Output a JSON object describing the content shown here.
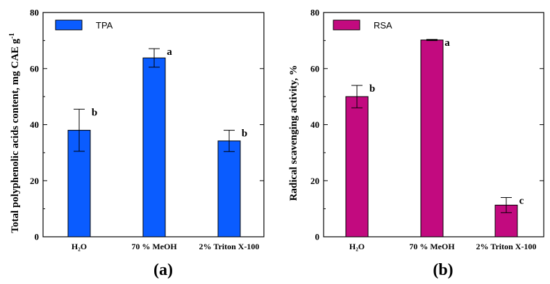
{
  "chart_data": [
    {
      "type": "bar",
      "panel_label": "(a)",
      "categories": [
        "H₂O",
        "70 % MeOH",
        "2% Triton X-100"
      ],
      "series": [
        {
          "name": "TPA",
          "color": "#0a5cff",
          "values": [
            38,
            63.8,
            34.2
          ],
          "errors": [
            7.5,
            3.3,
            3.8
          ],
          "labels": [
            "b",
            "a",
            "b"
          ]
        }
      ],
      "ylabel": "Total polyphenolic acids  content, mg CAE g",
      "ylabel_superscript": "-1",
      "ylim": [
        0,
        80
      ],
      "yticks": [
        "0",
        "20",
        "40",
        "60",
        "80"
      ],
      "legend_position": "top-left",
      "grid": false
    },
    {
      "type": "bar",
      "panel_label": "(b)",
      "categories": [
        "H₂O",
        "70 % MeOH",
        "2% Triton X-100"
      ],
      "series": [
        {
          "name": "RSA",
          "color": "#c20a7f",
          "values": [
            50,
            70.2,
            11.3
          ],
          "errors": [
            4,
            0.2,
            2.7
          ],
          "labels": [
            "b",
            "a",
            "c"
          ]
        }
      ],
      "ylabel": "Radical scavenging activity, %",
      "ylim": [
        0,
        80
      ],
      "yticks": [
        "0",
        "20",
        "40",
        "60",
        "80"
      ],
      "legend_position": "top-left",
      "grid": false
    }
  ]
}
